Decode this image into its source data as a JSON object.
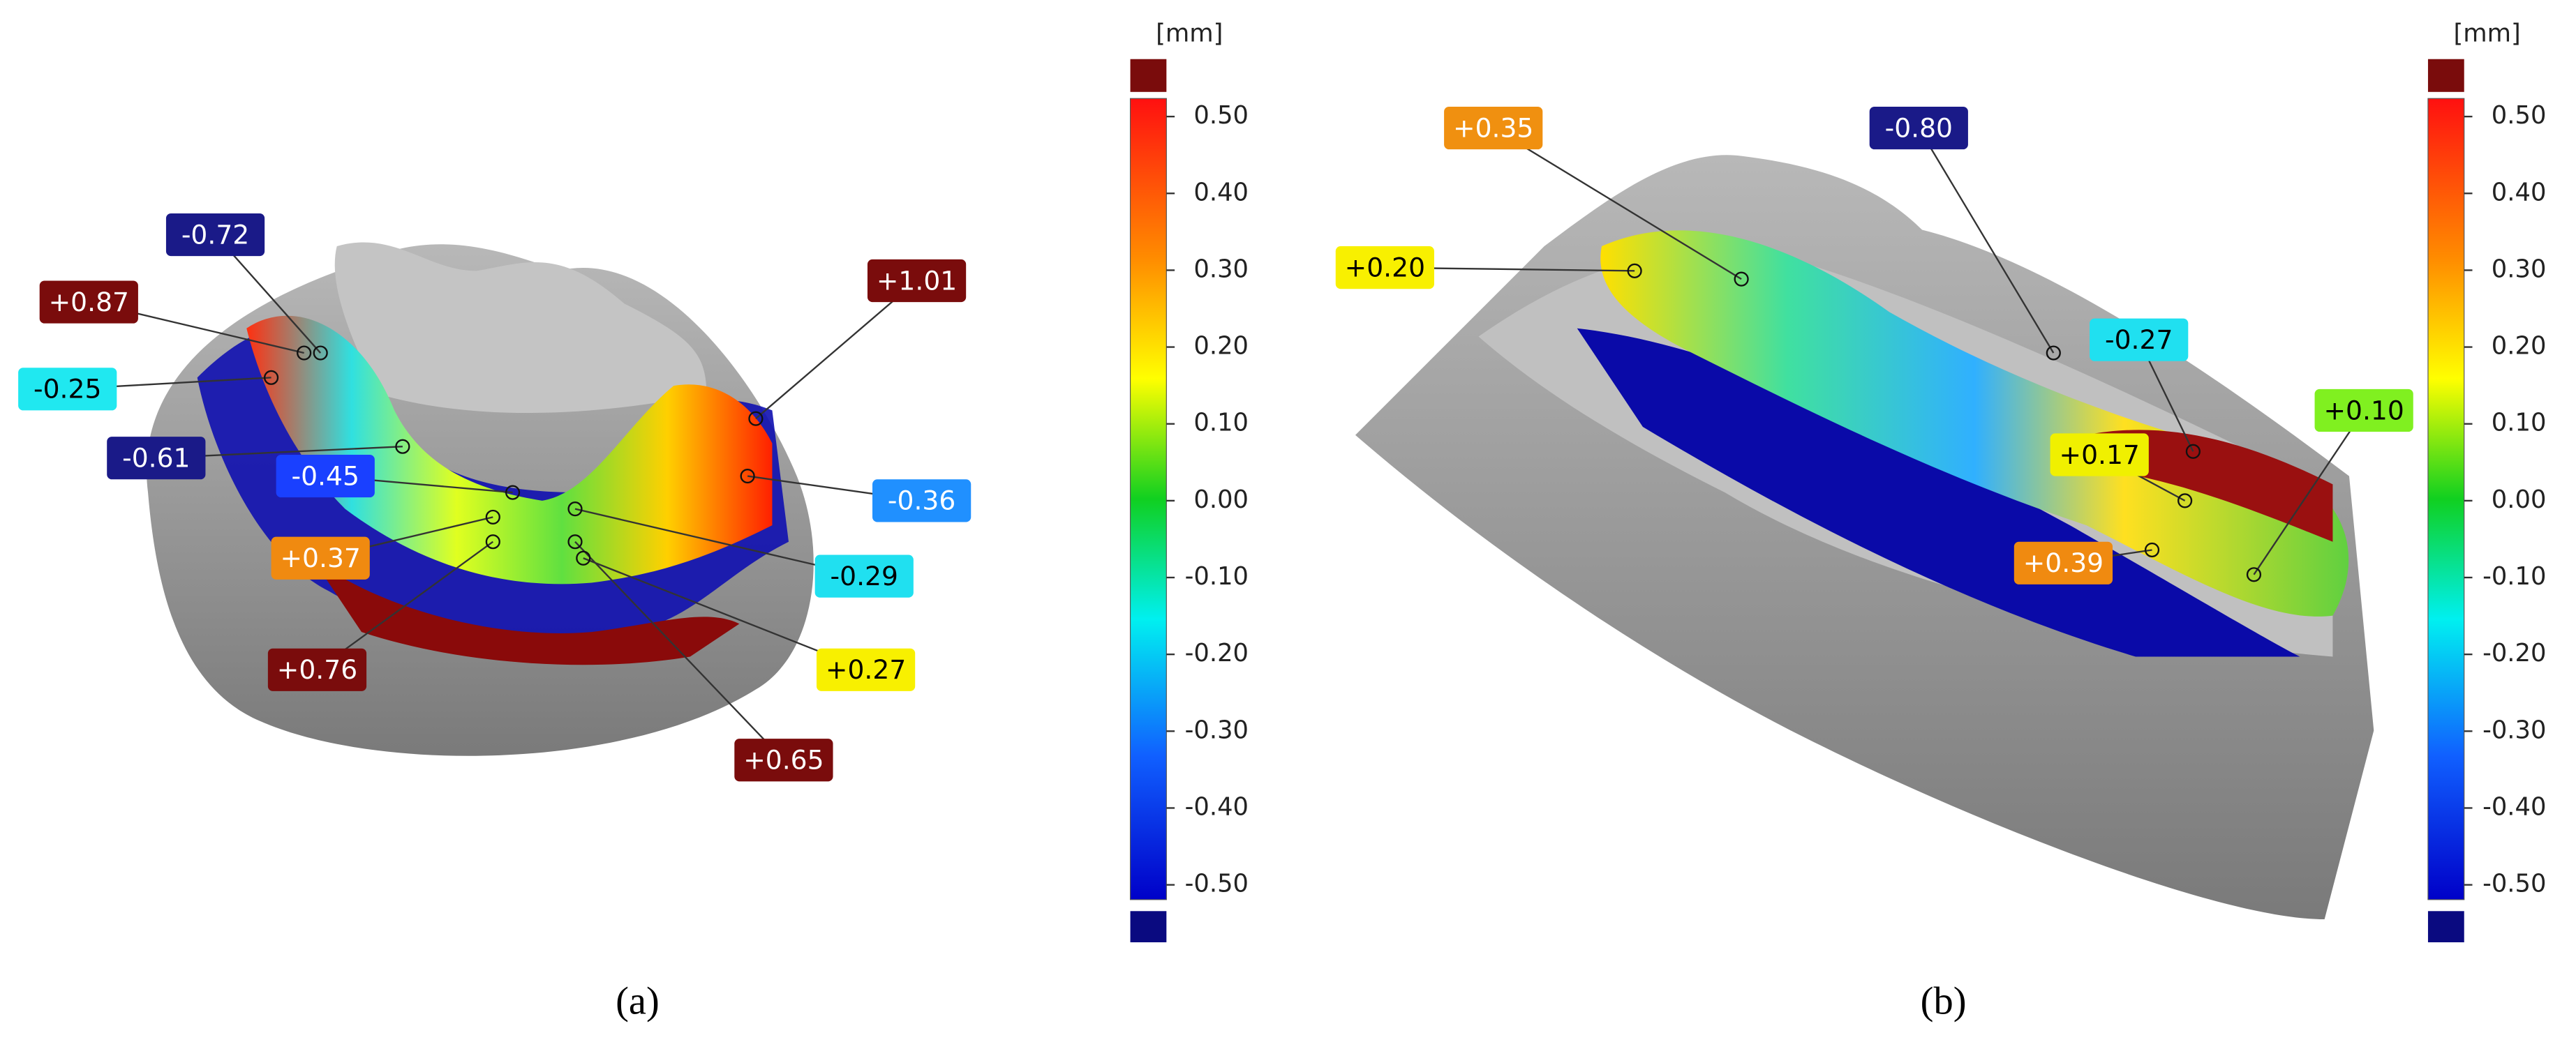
{
  "panels": [
    {
      "caption": "(a)",
      "colorbar": {
        "unit": "[mm]",
        "ticks": [
          "0.50",
          "0.40",
          "0.30",
          "0.20",
          "0.10",
          "0.00",
          "-0.10",
          "-0.20",
          "-0.30",
          "-0.40",
          "-0.50"
        ]
      },
      "annotations": [
        {
          "label": "-0.72"
        },
        {
          "label": "+0.87"
        },
        {
          "label": "-0.25"
        },
        {
          "label": "-0.61"
        },
        {
          "label": "-0.45"
        },
        {
          "label": "+0.37"
        },
        {
          "label": "+0.76"
        },
        {
          "label": "+0.65"
        },
        {
          "label": "+0.27"
        },
        {
          "label": "-0.29"
        },
        {
          "label": "-0.36"
        },
        {
          "label": "+1.01"
        }
      ]
    },
    {
      "caption": "(b)",
      "colorbar": {
        "unit": "[mm]",
        "ticks": [
          "0.50",
          "0.40",
          "0.30",
          "0.20",
          "0.10",
          "0.00",
          "-0.10",
          "-0.20",
          "-0.30",
          "-0.40",
          "-0.50"
        ]
      },
      "annotations": [
        {
          "label": "+0.35"
        },
        {
          "label": "+0.20"
        },
        {
          "label": "-0.80"
        },
        {
          "label": "-0.27"
        },
        {
          "label": "+0.17"
        },
        {
          "label": "+0.10"
        },
        {
          "label": "+0.39"
        }
      ]
    }
  ]
}
